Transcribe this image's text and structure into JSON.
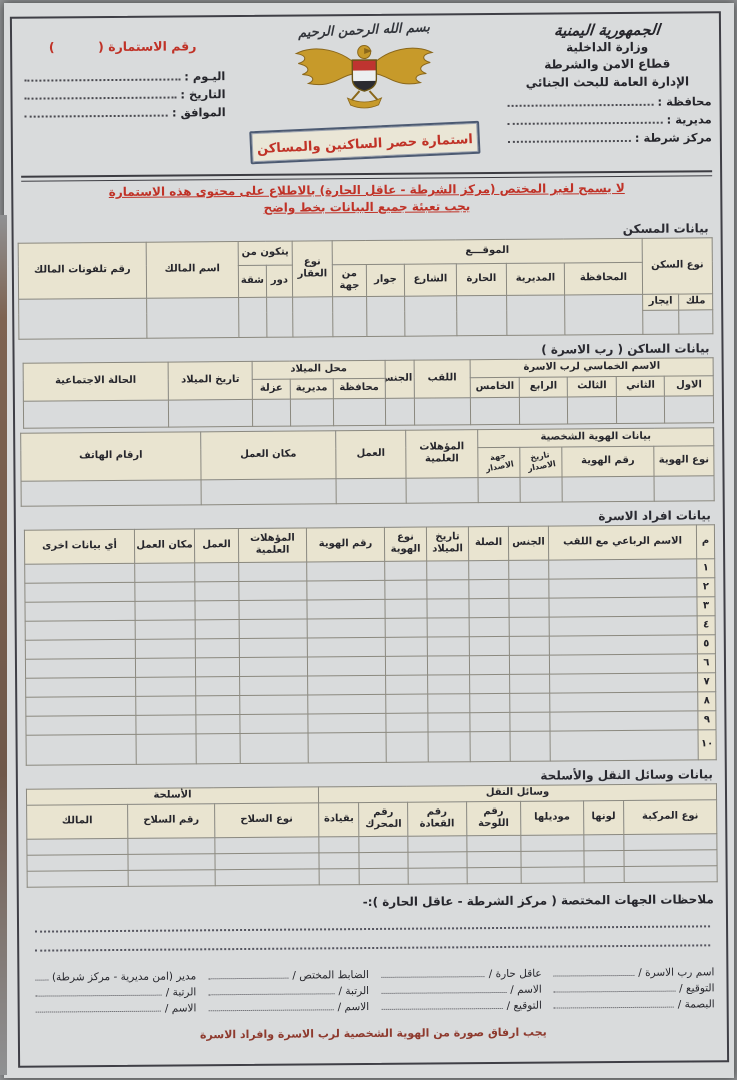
{
  "header": {
    "right": {
      "country": "الجمهورية اليمنية",
      "ministry": "وزارة الداخلية",
      "sector": "قطاع الامن والشرطة",
      "department": "الإدارة العامة للبحث الجنائي",
      "governorate_label": "محافظة :",
      "district_label": "مديرية :",
      "station_label": "مركز شرطة :"
    },
    "center": {
      "basmala": "بسم الله الرحمن الرحيم",
      "emblem_icon": "yemen-national-emblem",
      "banner": "استمارة حصر الساكنين والمساكن"
    },
    "left": {
      "form_no": "رقم الاستمارة (          )",
      "day_label": "اليـوم :",
      "date_label": "التاريخ :",
      "corresponding_label": "الموافق :"
    }
  },
  "notices": {
    "line1": "لا يسمح لغير المختص (مركز الشرطة - عاقل الحارة) بالاطلاع على محتوى هذه الاستمارة",
    "line2": "يجب تعبئة جميع البيانات بخط واضح"
  },
  "housing": {
    "title": "بيانات المسكن",
    "type_label": "نوع السكن",
    "type_own": "ملك",
    "type_rent": "ايجار",
    "location_label": "الموقـــع",
    "loc_governorate": "المحافظة",
    "loc_district": "المديرية",
    "loc_quarter": "الحارة",
    "loc_street": "الشارع",
    "loc_near": "جوار",
    "loc_side": "من جهة",
    "property_type": "نوع العقار",
    "consists_label": "يتكون من",
    "floors": "دور",
    "flat": "شقة",
    "owner_name": "اسم المالك",
    "owner_phones": "رقم تلفونات المالك"
  },
  "resident": {
    "title": "بيانات الساكن ( رب الاسرة )",
    "name_label": "الاسم الخماسي لرب الاسرة",
    "name1": "الاول",
    "name2": "الثاني",
    "name3": "الثالث",
    "name4": "الرابع",
    "name5": "الخامس",
    "surname": "اللقب",
    "gender": "الجنس",
    "birthplace_label": "محل الميلاد",
    "bp_governorate": "محافظة",
    "bp_district": "مديرية",
    "bp_uzlah": "عزلة",
    "birthdate": "تاريخ الميلاد",
    "marital": "الحالة الاجتماعية",
    "id_label": "بيانات الهوية الشخصية",
    "id_type": "نوع الهوية",
    "id_number": "رقم الهوية",
    "id_issue_date": "تاريخ الاصدار",
    "id_issuer": "جهة الاصدار",
    "qualifications": "المؤهلات العلمية",
    "job": "العمل",
    "workplace": "مكان العمل",
    "phones": "ارقام الهاتف"
  },
  "family": {
    "title": "بيانات افراد الاسرة",
    "cols": [
      "م",
      "الاسم الرباعي مع اللقب",
      "الجنس",
      "الصلة",
      "تاريخ الميلاد",
      "نوع الهوية",
      "رقم الهوية",
      "المؤهلات العلمية",
      "العمل",
      "مكان العمل",
      "أي بيانات اخرى"
    ],
    "row_numbers": [
      "١",
      "٢",
      "٣",
      "٤",
      "٥",
      "٦",
      "٧",
      "٨",
      "٩",
      "١٠"
    ]
  },
  "vehicles_weapons": {
    "title": "بيانات وسائل النقل والأسلحة",
    "transport_label": "وسائل النقل",
    "vehicle_type": "نوع المركبة",
    "color": "لونها",
    "model": "موديلها",
    "plate_no": "رقم اللوحة",
    "qaadah_no": "رقم القعادة",
    "engine_no": "رقم المحرك",
    "driven_by": "بقيادة",
    "weapons_label": "الأسلحة",
    "weapon_type": "نوع السلاح",
    "weapon_no": "رقم السلاح",
    "weapon_owner": "المالك"
  },
  "notes": {
    "label": "ملاحظات الجهات المختصة ( مركز الشرطة - عاقل الحارة ):-"
  },
  "signatures": {
    "cols": [
      {
        "lines": [
          "اسم رب الاسرة /",
          "التوقيع /",
          "البصمة /"
        ]
      },
      {
        "lines": [
          "عاقل حارة /",
          "الاسم /",
          "التوقيع /"
        ]
      },
      {
        "lines": [
          "الضابط المختص /",
          "الرتبة /",
          "الاسم /"
        ]
      },
      {
        "lines": [
          "مدير (امن مديرية - مركز شرطة)",
          "الرتبة /",
          "الاسم /"
        ]
      }
    ]
  },
  "footer": {
    "note": "يجب ارفاق صورة من الهوية الشخصية لرب الاسرة وافراد الاسرة"
  },
  "colors": {
    "paper": "#d9dbdc",
    "header_cell": "#e9e4d0",
    "accent_red": "#c03227",
    "footer_maroon": "#8e3a2e"
  }
}
